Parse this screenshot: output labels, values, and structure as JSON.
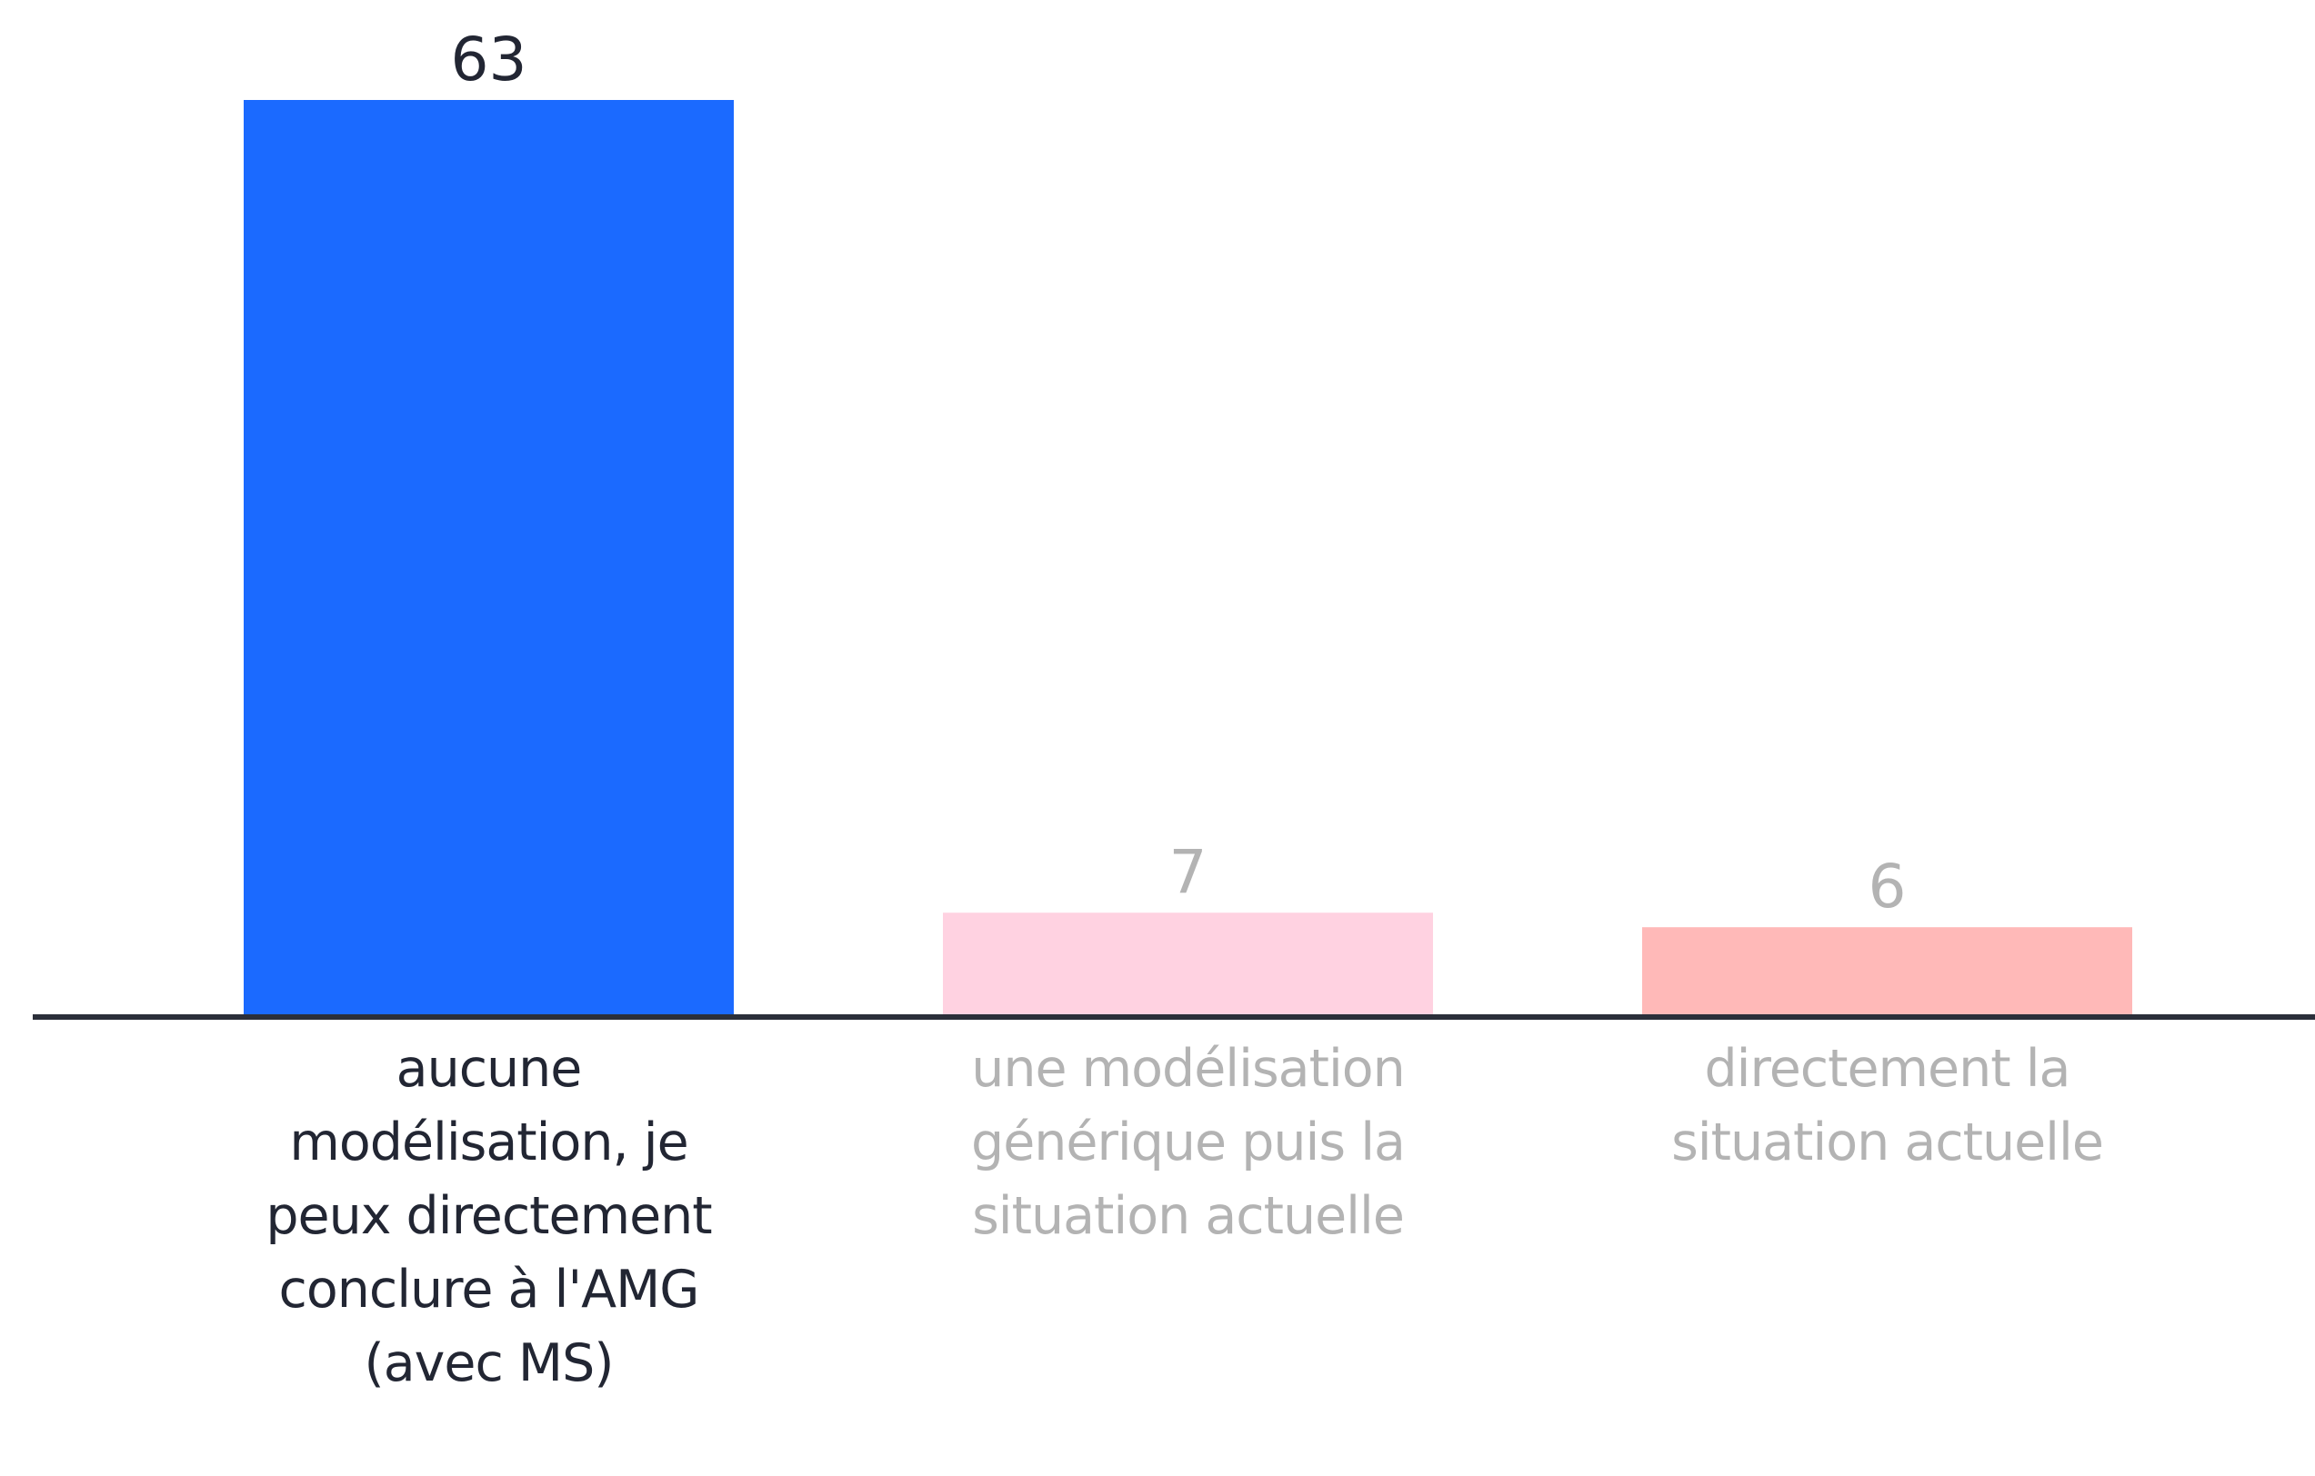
{
  "chart_data": {
    "type": "bar",
    "categories": [
      "aucune modélisation, je peux directement conclure à l'AMG (avec MS)",
      "une modélisation générique puis la situation actuelle",
      "directement la situation actuelle"
    ],
    "values": [
      63,
      7,
      6
    ],
    "colors": [
      "#1b6aff",
      "#ffd2e1",
      "#ffb9b8"
    ],
    "label_colors": [
      "#222633",
      "#b3b3b3",
      "#b3b3b3"
    ]
  }
}
